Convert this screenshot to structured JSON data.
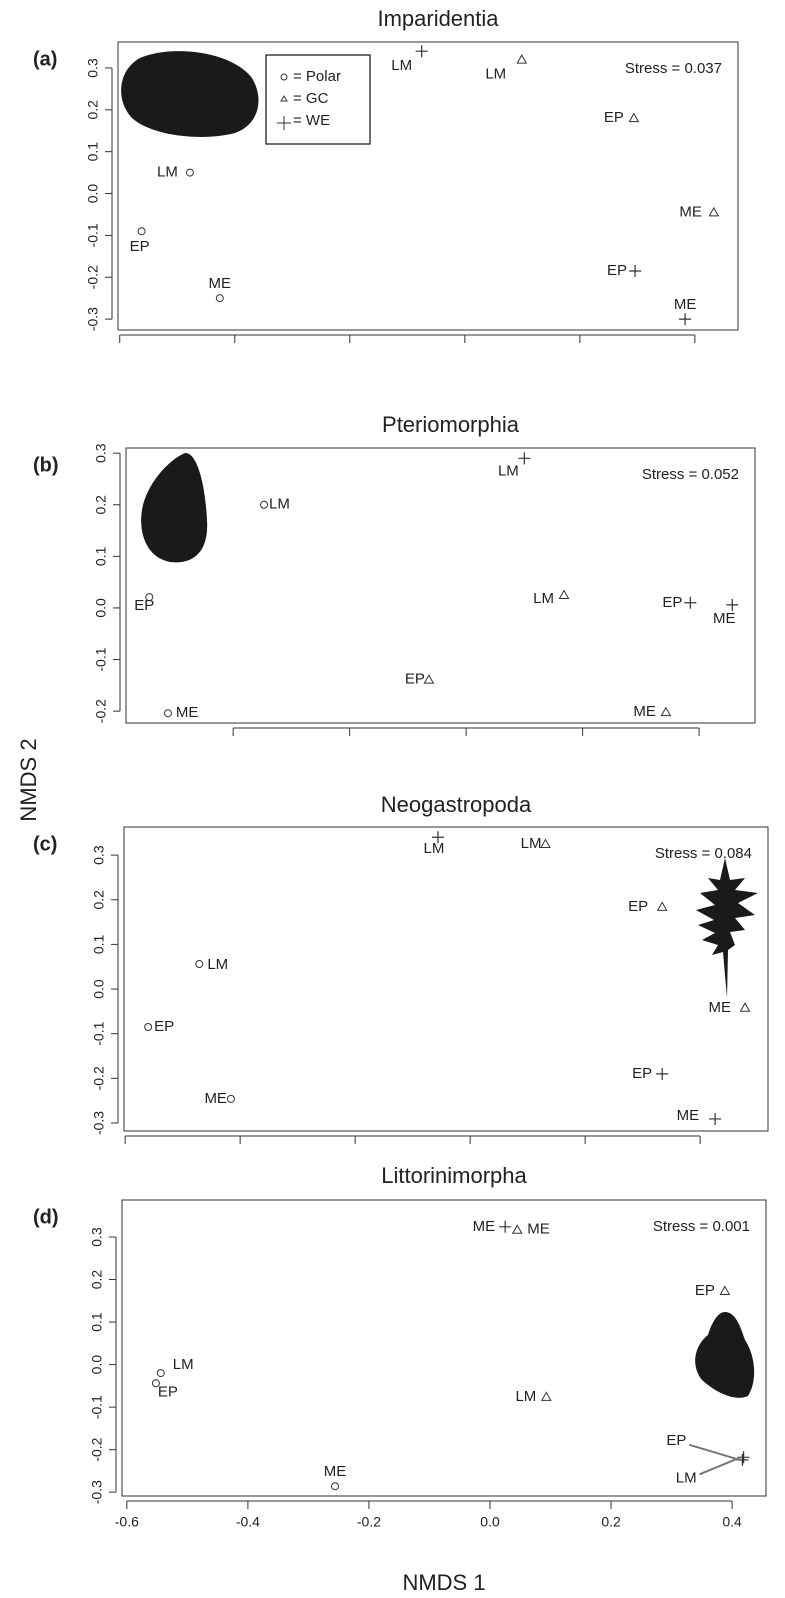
{
  "ylabel": "NMDS 2",
  "chart_data": [
    {
      "type": "scatter",
      "panel_label": "(a)",
      "title": "Imparidentia",
      "annotation": "Stress = 0.037",
      "legend": "top",
      "xlim": [
        -0.603,
        0.475
      ],
      "xticks": [
        -0.6,
        -0.4,
        -0.2,
        0,
        0.2,
        0.4
      ],
      "ylim": [
        -0.326,
        0.362
      ],
      "yticks": [
        0.3,
        0.2,
        0.1,
        {
          "value": 0,
          "label": "0.0"
        },
        -0.1,
        -0.2,
        -0.3
      ],
      "series": [
        {
          "name": "= Polar",
          "marker": "circle",
          "color": "#333333",
          "x": [
            -0.478,
            -0.562,
            -0.426
          ],
          "values": [
            0.05,
            -0.09,
            -0.25
          ],
          "labels": [
            "LM",
            "EP",
            "ME"
          ]
        },
        {
          "name": "= GC",
          "marker": "triangle",
          "color": "#333333",
          "x": [
            0.099,
            0.294,
            0.433
          ],
          "values": [
            0.32,
            0.18,
            -0.045
          ],
          "labels": [
            "LM",
            "EP",
            "ME"
          ]
        },
        {
          "name": "= WE",
          "marker": "plus",
          "color": "#333333",
          "x": [
            -0.075,
            0.296,
            0.383
          ],
          "values": [
            0.34,
            -0.185,
            -0.3
          ],
          "labels": [
            "LM",
            "EP",
            "ME"
          ]
        }
      ]
    },
    {
      "type": "scatter",
      "panel_label": "(b)",
      "title": "Pteriomorphia",
      "annotation": "Stress = 0.052",
      "xlim": [
        -0.584,
        0.496
      ],
      "xticks": [
        -0.4,
        -0.2,
        0,
        0.2,
        0.4
      ],
      "ylim": [
        -0.223,
        0.31
      ],
      "yticks": [
        0.3,
        0.2,
        0.1,
        {
          "value": 0,
          "label": "0.0"
        },
        -0.1,
        -0.2
      ],
      "series": [
        {
          "name": "= Polar",
          "marker": "circle",
          "color": "#333333",
          "x": [
            -0.347,
            -0.544,
            -0.512
          ],
          "values": [
            0.2,
            0.021,
            -0.204
          ],
          "labels": [
            "LM",
            "EP",
            "ME"
          ]
        },
        {
          "name": "= GC",
          "marker": "triangle",
          "color": "#333333",
          "x": [
            0.168,
            -0.064,
            0.343
          ],
          "values": [
            0.025,
            -0.139,
            -0.202
          ],
          "labels": [
            "LM",
            "EP",
            "ME"
          ]
        },
        {
          "name": "= WE",
          "marker": "plus",
          "color": "#333333",
          "x": [
            0.1,
            0.385,
            0.457
          ],
          "values": [
            0.29,
            0.01,
            0.006
          ],
          "labels": [
            "LM",
            "EP",
            "ME"
          ]
        }
      ]
    },
    {
      "type": "scatter",
      "panel_label": "(c)",
      "title": "Neogastropoda",
      "annotation": "Stress = 0.084",
      "xlim": [
        -0.602,
        0.518
      ],
      "xticks": [
        -0.6,
        -0.4,
        -0.2,
        0,
        0.2,
        0.4
      ],
      "ylim": [
        -0.318,
        0.363
      ],
      "yticks": [
        0.3,
        0.2,
        0.1,
        {
          "value": 0,
          "label": "0.0"
        },
        -0.1,
        -0.2,
        -0.3
      ],
      "series": [
        {
          "name": "= Polar",
          "marker": "circle",
          "color": "#333333",
          "x": [
            -0.471,
            -0.56,
            -0.416
          ],
          "values": [
            0.056,
            -0.085,
            -0.246
          ],
          "labels": [
            "LM",
            "EP",
            "ME"
          ]
        },
        {
          "name": "= GC",
          "marker": "triangle",
          "color": "#333333",
          "x": [
            0.131,
            0.334,
            0.478
          ],
          "values": [
            0.325,
            0.184,
            -0.042
          ],
          "labels": [
            "LM",
            "EP",
            "ME"
          ]
        },
        {
          "name": "= WE",
          "marker": "plus",
          "color": "#333333",
          "x": [
            -0.056,
            0.334,
            0.426
          ],
          "values": [
            0.34,
            -0.19,
            -0.291
          ],
          "labels": [
            "LM",
            "EP",
            "ME"
          ]
        }
      ]
    },
    {
      "type": "scatter",
      "panel_label": "(d)",
      "title": "Littorinimorpha",
      "annotation": "Stress = 0.001",
      "xlabel": "NMDS 1",
      "xlim": [
        -0.608,
        0.456
      ],
      "xticks": [
        -0.6,
        -0.4,
        -0.2,
        {
          "value": 0,
          "label": "0.0"
        },
        0.2,
        0.4
      ],
      "ylim": [
        -0.309,
        0.387
      ],
      "yticks": [
        0.3,
        0.2,
        0.1,
        {
          "value": 0,
          "label": "0.0"
        },
        -0.1,
        -0.2,
        -0.3
      ],
      "series": [
        {
          "name": "= Polar",
          "marker": "circle",
          "color": "#333333",
          "x": [
            -0.544,
            -0.552,
            -0.256
          ],
          "values": [
            -0.02,
            -0.044,
            -0.286
          ],
          "labels": [
            "LM",
            "EP",
            "ME"
          ]
        },
        {
          "name": "= GC",
          "marker": "triangle",
          "color": "#333333",
          "x": [
            0.093,
            0.388,
            0.045
          ],
          "values": [
            -0.076,
            0.173,
            0.317
          ],
          "labels": [
            "LM",
            "EP",
            "ME"
          ]
        },
        {
          "name": "= WE",
          "marker": "plus",
          "color": "#333333",
          "x": [
            0.419,
            0.417,
            0.025
          ],
          "values": [
            -0.218,
            -0.224,
            0.324
          ],
          "labels": [
            "LM",
            "EP",
            "ME"
          ]
        }
      ]
    }
  ]
}
